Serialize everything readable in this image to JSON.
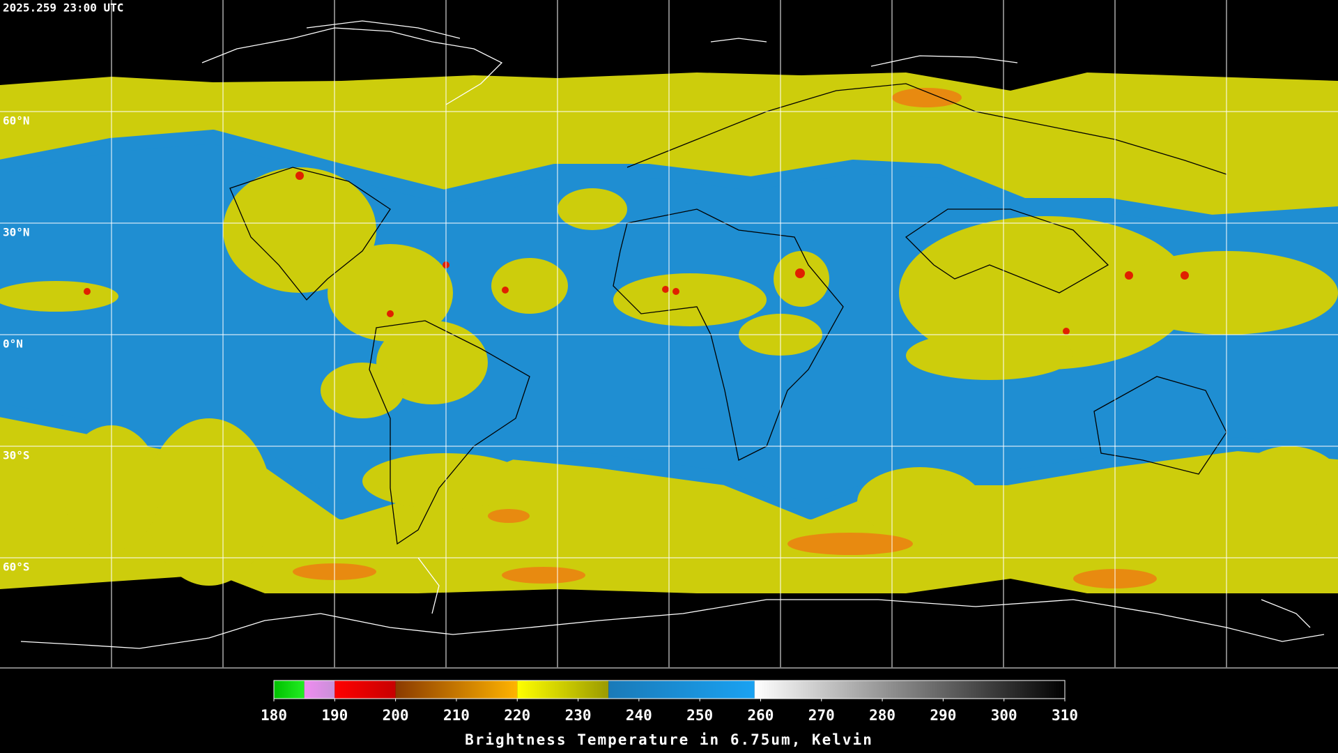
{
  "header": {
    "timestamp": "2025.259 23:00 UTC"
  },
  "map": {
    "lat_range": [
      90,
      -90
    ],
    "latitudes": [
      {
        "value": 60,
        "label": "60°N"
      },
      {
        "value": 30,
        "label": "30°N"
      },
      {
        "value": 0,
        "label": "0°N"
      },
      {
        "value": -30,
        "label": "30°S"
      },
      {
        "value": -60,
        "label": "60°S"
      }
    ]
  },
  "colorbar": {
    "title": "Brightness Temperature in 6.75um, Kelvin",
    "range": [
      180,
      310
    ],
    "ticks": [
      180,
      190,
      200,
      210,
      220,
      230,
      240,
      250,
      260,
      270,
      280,
      290,
      300,
      310
    ],
    "segments": [
      {
        "from": 180,
        "to": 185,
        "colors": [
          "#00c000",
          "#22ee22"
        ]
      },
      {
        "from": 185,
        "to": 190,
        "colors": [
          "#f08cf0",
          "#c890d8"
        ]
      },
      {
        "from": 190,
        "to": 200,
        "colors": [
          "#ff0000",
          "#c80000"
        ]
      },
      {
        "from": 200,
        "to": 220,
        "colors": [
          "#8a3a00",
          "#ffb400"
        ]
      },
      {
        "from": 220,
        "to": 235,
        "colors": [
          "#ffff00",
          "#9a9a00"
        ]
      },
      {
        "from": 235,
        "to": 259,
        "colors": [
          "#1a7ab8",
          "#1aa2f2"
        ]
      },
      {
        "from": 259,
        "to": 310,
        "colors": [
          "#ffffff",
          "#000000"
        ]
      }
    ]
  }
}
